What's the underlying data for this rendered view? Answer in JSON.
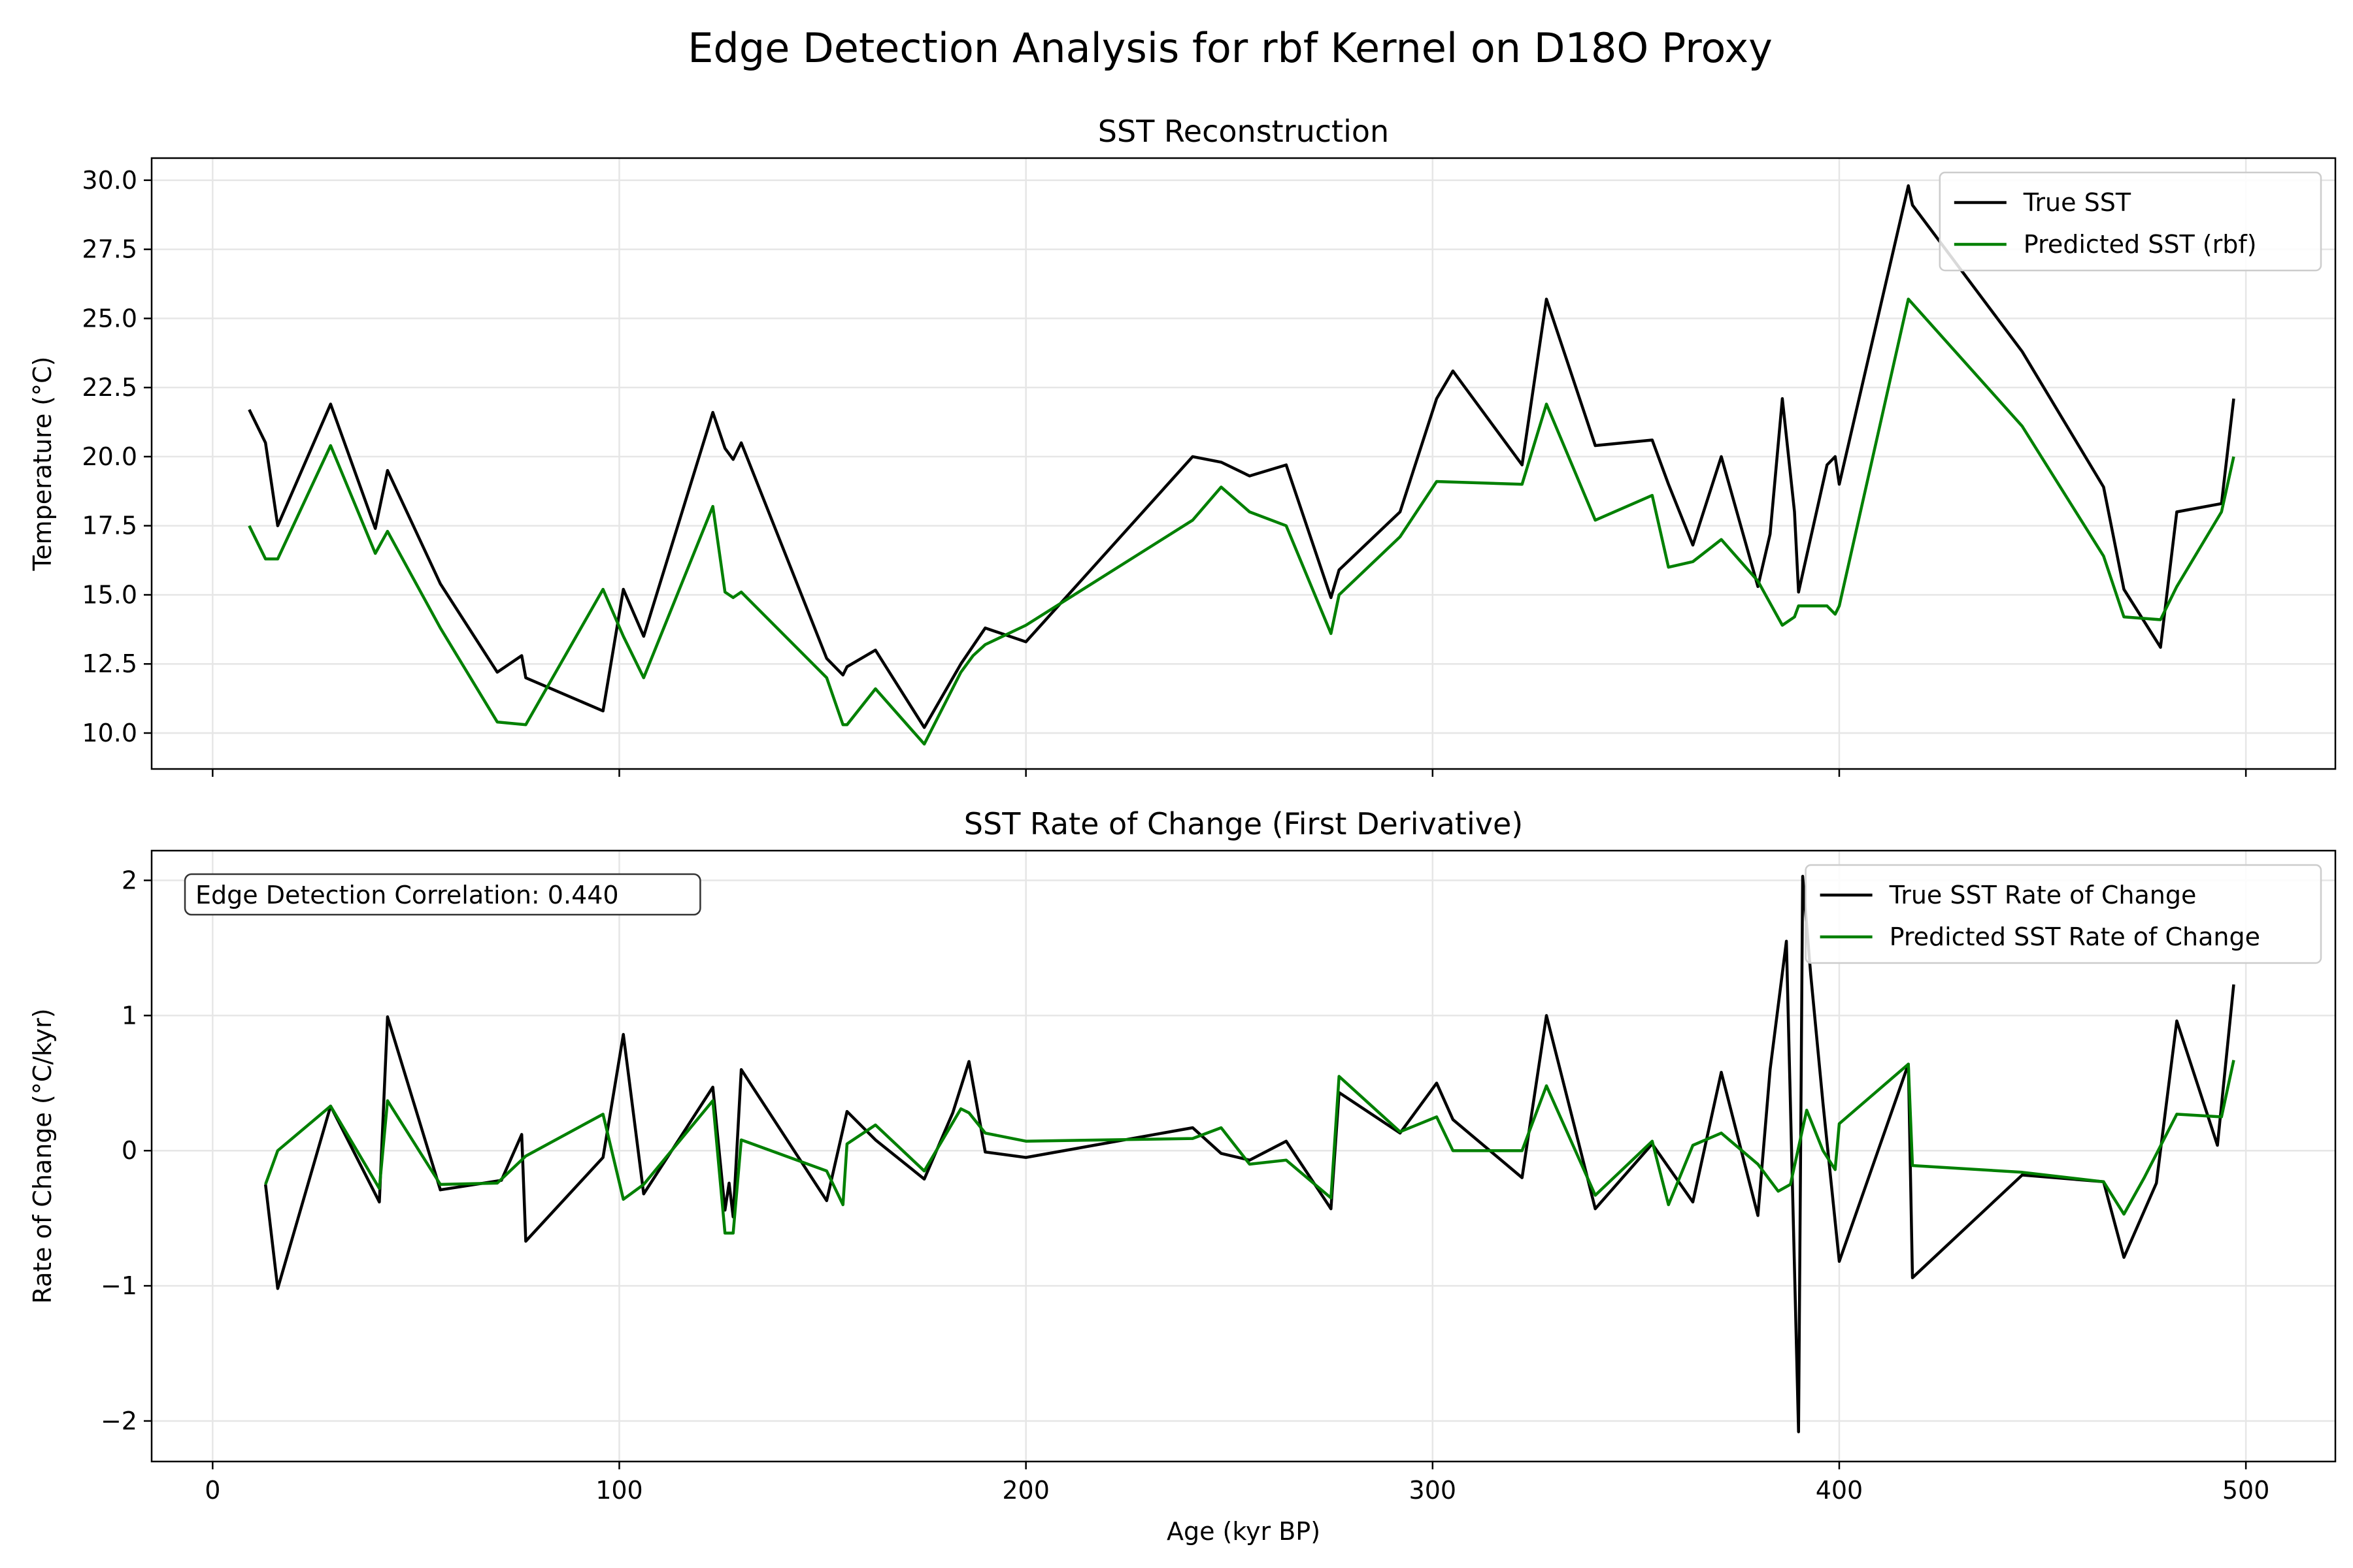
{
  "figure": {
    "suptitle": "Edge Detection Analysis for rbf Kernel on D18O Proxy"
  },
  "colors": {
    "true_series": "#000000",
    "predicted_series": "#008000",
    "grid": "#e6e6e6"
  },
  "chart_data": [
    {
      "type": "line",
      "title": "SST Reconstruction",
      "xlabel": "",
      "ylabel": "Temperature (°C)",
      "xlim": [
        -15,
        522
      ],
      "ylim": [
        8.7,
        30.8
      ],
      "xticks": [
        0,
        100,
        200,
        300,
        400,
        500
      ],
      "xtick_labels": [
        "",
        "",
        "",
        "",
        "",
        ""
      ],
      "yticks": [
        10.0,
        12.5,
        15.0,
        17.5,
        20.0,
        22.5,
        25.0,
        27.5,
        30.0
      ],
      "ytick_labels": [
        "10.0",
        "12.5",
        "15.0",
        "17.5",
        "20.0",
        "22.5",
        "25.0",
        "27.5",
        "30.0"
      ],
      "grid": true,
      "legend_position": "upper-right",
      "series": [
        {
          "name": "True SST",
          "color": "#000000",
          "x": [
            9,
            13,
            16,
            29,
            40,
            43,
            56,
            70,
            76,
            77,
            96,
            101,
            106,
            123,
            126,
            128,
            130,
            151,
            155,
            156,
            163,
            175,
            184,
            190,
            200,
            241,
            248,
            255,
            264,
            275,
            277,
            292,
            301,
            305,
            322,
            328,
            340,
            354,
            358,
            364,
            371,
            380,
            383,
            386,
            389,
            390,
            397,
            399,
            400,
            417,
            418,
            445,
            465,
            470,
            479,
            483,
            494,
            497
          ],
          "y": [
            21.7,
            20.5,
            17.5,
            21.9,
            17.4,
            19.5,
            15.4,
            12.2,
            12.8,
            12.0,
            10.8,
            15.2,
            13.5,
            21.6,
            20.3,
            19.9,
            20.5,
            12.7,
            12.1,
            12.4,
            13.0,
            10.2,
            12.5,
            13.8,
            13.3,
            20.0,
            19.8,
            19.3,
            19.7,
            14.9,
            15.9,
            18.0,
            22.1,
            23.1,
            19.7,
            25.7,
            20.4,
            20.6,
            19.0,
            16.8,
            20.0,
            15.3,
            17.2,
            22.1,
            18.0,
            15.1,
            19.7,
            20.0,
            19.0,
            29.8,
            29.1,
            23.8,
            18.9,
            15.2,
            13.1,
            18.0,
            18.3,
            22.1
          ]
        },
        {
          "name": "Predicted SST (rbf)",
          "color": "#008000",
          "x": [
            9,
            13,
            16,
            29,
            40,
            43,
            56,
            70,
            77,
            96,
            101,
            106,
            123,
            126,
            128,
            130,
            151,
            155,
            156,
            163,
            175,
            184,
            187,
            190,
            200,
            241,
            248,
            255,
            264,
            275,
            277,
            292,
            301,
            322,
            328,
            340,
            354,
            358,
            364,
            371,
            380,
            383,
            386,
            389,
            390,
            397,
            399,
            400,
            417,
            445,
            465,
            470,
            479,
            483,
            494,
            497
          ],
          "y": [
            17.5,
            16.3,
            16.3,
            20.4,
            16.5,
            17.3,
            13.8,
            10.4,
            10.3,
            15.2,
            13.5,
            12.0,
            18.2,
            15.1,
            14.9,
            15.1,
            12.0,
            10.3,
            10.3,
            11.6,
            9.6,
            12.2,
            12.8,
            13.2,
            13.9,
            17.7,
            18.9,
            18.0,
            17.5,
            13.6,
            15.0,
            17.1,
            19.1,
            19.0,
            21.9,
            17.7,
            18.6,
            16.0,
            16.2,
            17.0,
            15.5,
            14.7,
            13.9,
            14.2,
            14.6,
            14.6,
            14.3,
            14.6,
            25.7,
            21.1,
            16.4,
            14.2,
            14.1,
            15.3,
            18.0,
            20.0
          ]
        }
      ]
    },
    {
      "type": "line",
      "title": "SST Rate of Change (First Derivative)",
      "xlabel": "Age (kyr BP)",
      "ylabel": "Rate of Change (°C/kyr)",
      "xlim": [
        -15,
        522
      ],
      "ylim": [
        -2.3,
        2.22
      ],
      "xticks": [
        0,
        100,
        200,
        300,
        400,
        500
      ],
      "xtick_labels": [
        "0",
        "100",
        "200",
        "300",
        "400",
        "500"
      ],
      "yticks": [
        -2,
        -1,
        0,
        1,
        2
      ],
      "ytick_labels": [
        "−2",
        "−1",
        "0",
        "1",
        "2"
      ],
      "grid": true,
      "legend_position": "upper-right",
      "annotation": "Edge Detection Correlation: 0.440",
      "series": [
        {
          "name": "True SST Rate of Change",
          "color": "#000000",
          "x": [
            13,
            16,
            29,
            41,
            43,
            56,
            71,
            76,
            77,
            96,
            101,
            106,
            123,
            126,
            127,
            128,
            130,
            151,
            156,
            163,
            175,
            182,
            186,
            190,
            200,
            241,
            248,
            255,
            264,
            275,
            277,
            292,
            301,
            305,
            322,
            328,
            340,
            354,
            364,
            371,
            380,
            383,
            387,
            390,
            391,
            393,
            396,
            400,
            417,
            418,
            445,
            465,
            470,
            478,
            483,
            493,
            497
          ],
          "y": [
            -0.25,
            -1.02,
            0.33,
            -0.38,
            0.99,
            -0.29,
            -0.22,
            0.12,
            -0.67,
            -0.05,
            0.86,
            -0.32,
            0.47,
            -0.44,
            -0.24,
            -0.49,
            0.6,
            -0.37,
            0.29,
            0.08,
            -0.21,
            0.28,
            0.66,
            -0.01,
            -0.05,
            0.17,
            -0.02,
            -0.07,
            0.07,
            -0.43,
            0.43,
            0.13,
            0.5,
            0.23,
            -0.2,
            1.0,
            -0.43,
            0.05,
            -0.38,
            0.58,
            -0.48,
            0.6,
            1.55,
            -2.08,
            2.03,
            1.3,
            0.35,
            -0.82,
            0.64,
            -0.94,
            -0.18,
            -0.23,
            -0.79,
            -0.24,
            0.96,
            0.04,
            1.23
          ]
        },
        {
          "name": "Predicted SST Rate of Change",
          "color": "#008000",
          "x": [
            13,
            16,
            29,
            41,
            43,
            56,
            70,
            77,
            96,
            101,
            106,
            123,
            126,
            128,
            130,
            151,
            155,
            156,
            163,
            175,
            184,
            186,
            190,
            200,
            241,
            248,
            255,
            264,
            275,
            277,
            292,
            301,
            305,
            322,
            328,
            340,
            354,
            358,
            364,
            371,
            380,
            385,
            388,
            392,
            396,
            399,
            400,
            417,
            418,
            445,
            465,
            470,
            475,
            483,
            494,
            497
          ],
          "y": [
            -0.25,
            0.0,
            0.33,
            -0.28,
            0.37,
            -0.25,
            -0.24,
            -0.04,
            0.27,
            -0.36,
            -0.25,
            0.37,
            -0.61,
            -0.61,
            0.08,
            -0.15,
            -0.4,
            0.05,
            0.19,
            -0.15,
            0.31,
            0.28,
            0.13,
            0.07,
            0.09,
            0.17,
            -0.1,
            -0.07,
            -0.35,
            0.55,
            0.14,
            0.25,
            0.0,
            0.0,
            0.48,
            -0.33,
            0.07,
            -0.4,
            0.04,
            0.13,
            -0.1,
            -0.3,
            -0.25,
            0.3,
            0.0,
            -0.14,
            0.2,
            0.64,
            -0.11,
            -0.16,
            -0.23,
            -0.47,
            -0.2,
            0.27,
            0.25,
            0.67
          ]
        }
      ]
    }
  ]
}
